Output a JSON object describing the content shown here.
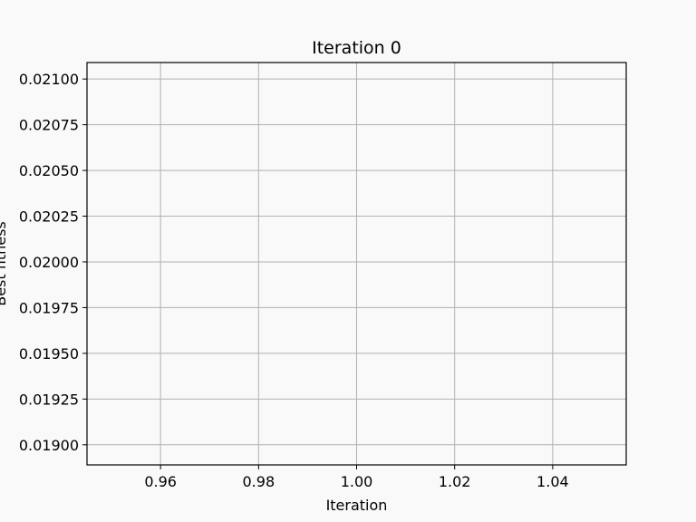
{
  "chart_data": {
    "type": "line",
    "title": "Iteration 0",
    "xlabel": "Iteration",
    "ylabel": "Best fitness",
    "xlim": [
      0.945,
      1.055
    ],
    "ylim": [
      0.01889,
      0.02109
    ],
    "xticks": [
      0.96,
      0.98,
      1.0,
      1.02,
      1.04
    ],
    "xtick_labels": [
      "0.96",
      "0.98",
      "1.00",
      "1.02",
      "1.04"
    ],
    "yticks": [
      0.019,
      0.01925,
      0.0195,
      0.01975,
      0.02,
      0.02025,
      0.0205,
      0.02075,
      0.021
    ],
    "ytick_labels": [
      "0.01900",
      "0.01925",
      "0.01950",
      "0.01975",
      "0.02000",
      "0.02025",
      "0.02050",
      "0.02075",
      "0.02100"
    ],
    "grid": true,
    "series": [
      {
        "x": [],
        "values": []
      }
    ],
    "colors": {
      "background": "#f9f9f9",
      "axes_face": "#f9f9f9",
      "grid": "#b0b0b0",
      "spine": "#000000",
      "text": "#000000"
    }
  }
}
